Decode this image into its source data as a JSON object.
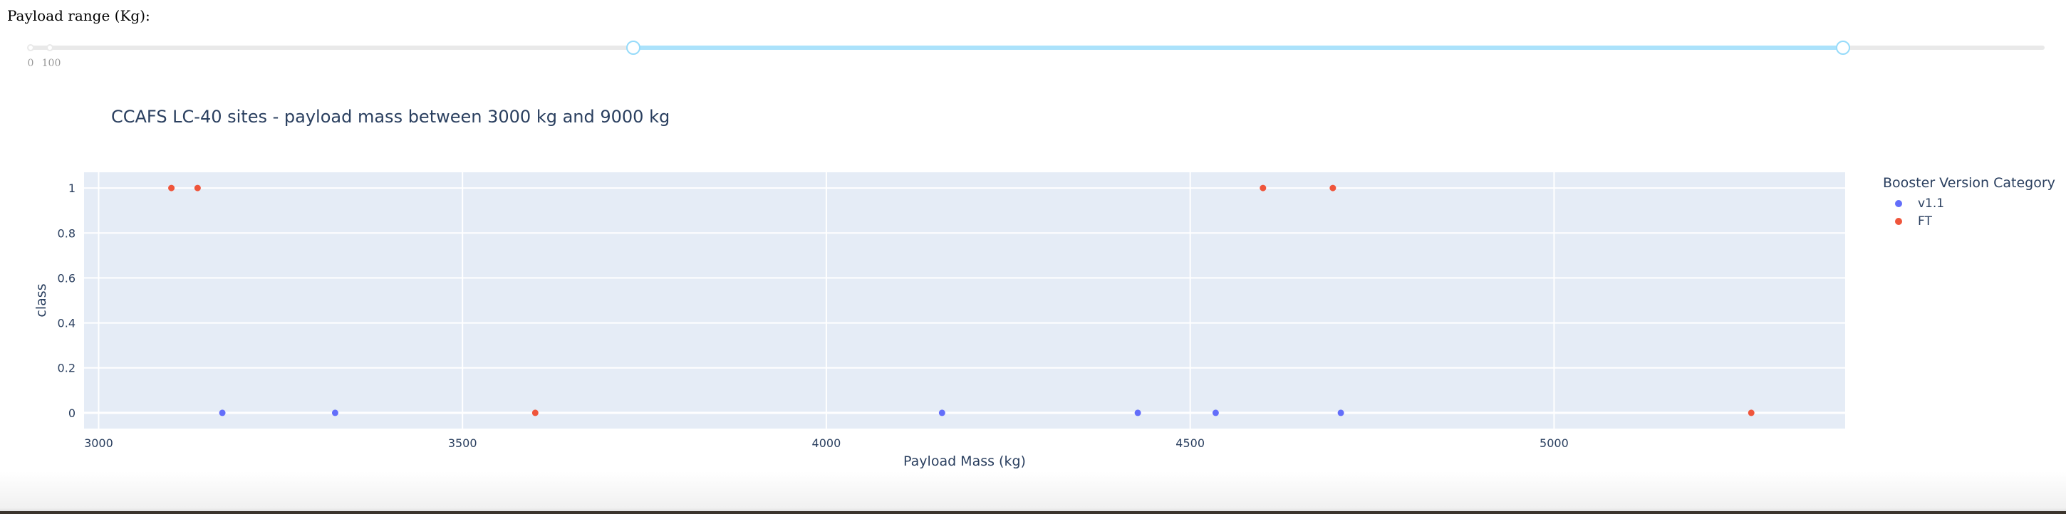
{
  "slider": {
    "label": "Payload range (Kg):",
    "min": 0,
    "max": 10000,
    "value": [
      3000,
      9000
    ],
    "marks": [
      {
        "value": 0,
        "label": "0"
      },
      {
        "value": 100,
        "label": "100"
      }
    ]
  },
  "chart_data": {
    "type": "scatter",
    "title": "CCAFS LC-40 sites - payload mass between 3000 kg and 9000 kg",
    "xlabel": "Payload Mass (kg)",
    "ylabel": "class",
    "xlim": [
      2980,
      5400
    ],
    "ylim": [
      -0.07,
      1.07
    ],
    "xticks": [
      3000,
      3500,
      4000,
      4500,
      5000
    ],
    "yticks": [
      0,
      0.2,
      0.4,
      0.6,
      0.8,
      1
    ],
    "grid": true,
    "legend_title": "Booster Version Category",
    "legend_position": "right",
    "series": [
      {
        "name": "v1.1",
        "color": "#636efa",
        "points": [
          {
            "x": 3170,
            "y": 0
          },
          {
            "x": 3325,
            "y": 0
          },
          {
            "x": 4159,
            "y": 0
          },
          {
            "x": 4428,
            "y": 0
          },
          {
            "x": 4535,
            "y": 0
          },
          {
            "x": 4707,
            "y": 0
          }
        ]
      },
      {
        "name": "FT",
        "color": "#ef553b",
        "points": [
          {
            "x": 3100,
            "y": 1
          },
          {
            "x": 3136,
            "y": 1
          },
          {
            "x": 3600,
            "y": 0
          },
          {
            "x": 4600,
            "y": 1
          },
          {
            "x": 4696,
            "y": 1
          },
          {
            "x": 5271,
            "y": 0
          }
        ]
      }
    ]
  }
}
